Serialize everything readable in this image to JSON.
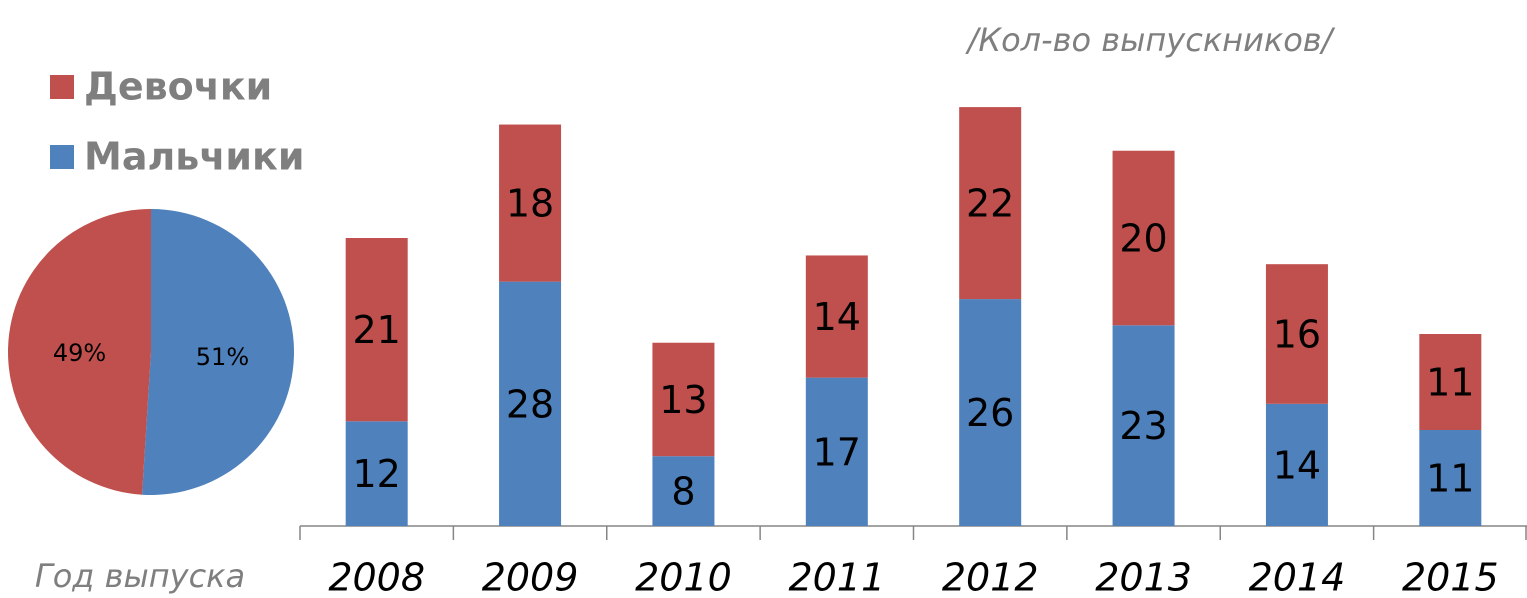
{
  "chart_data": [
    {
      "type": "pie",
      "values": [
        51,
        49
      ],
      "value_labels": [
        "51%",
        "49%"
      ],
      "colors": [
        "#4f81bd",
        "#c0504d"
      ]
    },
    {
      "type": "stacked_bar",
      "annotation": "/Кол-во выпускников/",
      "xlabel": "Год выпуска",
      "categories": [
        "2008",
        "2009",
        "2010",
        "2011",
        "2012",
        "2013",
        "2014",
        "2015"
      ],
      "series": [
        {
          "name": "Мальчики",
          "color": "#4f81bd",
          "values": [
            12,
            28,
            8,
            17,
            26,
            23,
            14,
            11
          ]
        },
        {
          "name": "Девочки",
          "color": "#c0504d",
          "values": [
            21,
            18,
            13,
            14,
            22,
            20,
            16,
            11
          ]
        }
      ],
      "ylim": [
        0,
        55
      ],
      "legend": "top-left"
    }
  ]
}
